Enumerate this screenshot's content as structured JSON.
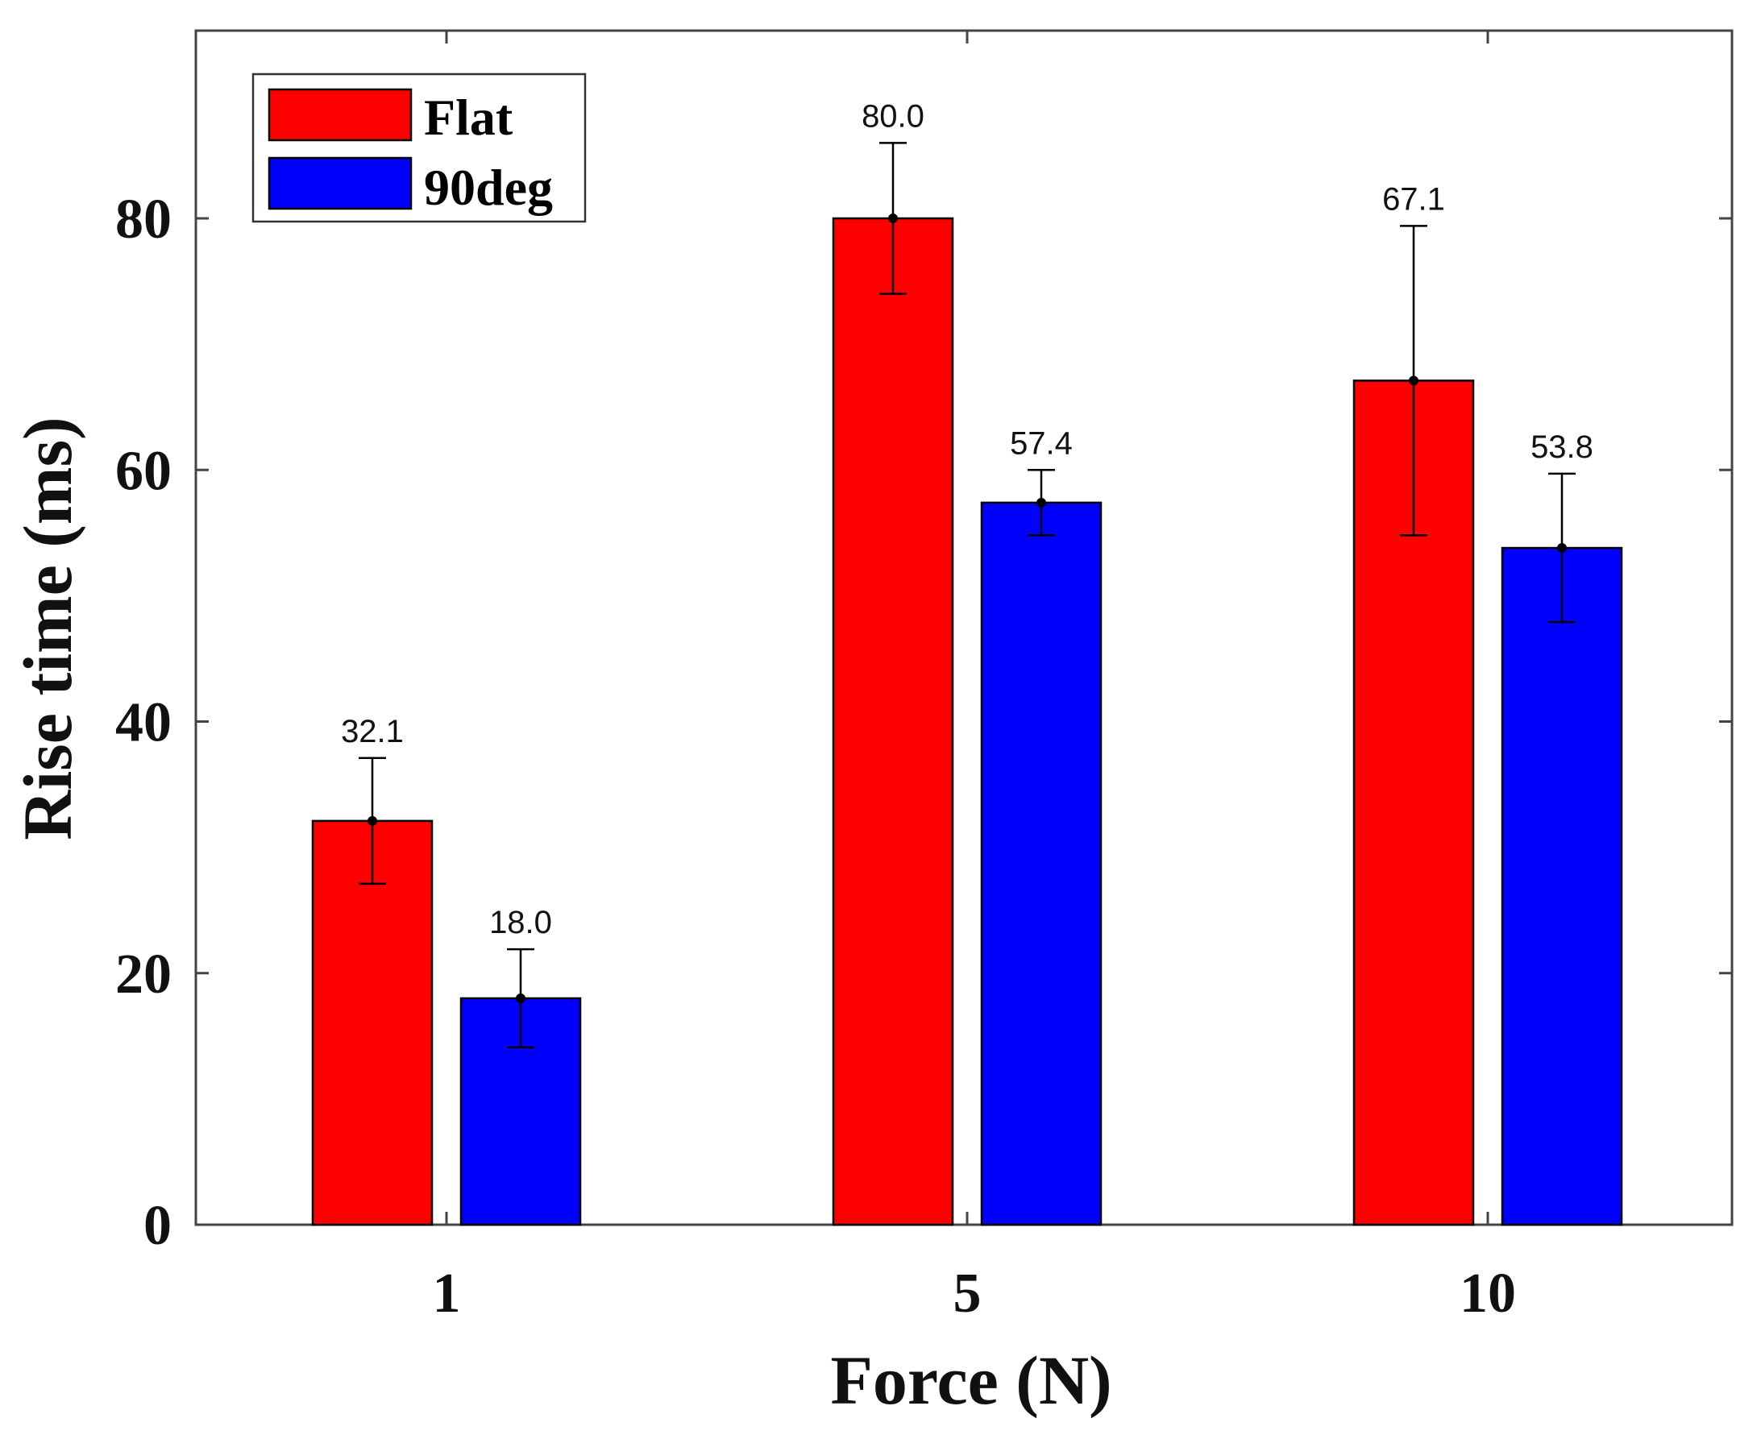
{
  "chart_data": {
    "type": "bar",
    "title": "",
    "xlabel": "Force (N)",
    "ylabel": "Rise time (ms)",
    "categories": [
      "1",
      "5",
      "10"
    ],
    "ylim": [
      0,
      95
    ],
    "yticks": [
      0,
      20,
      40,
      60,
      80
    ],
    "ytick_labels": [
      "0",
      "20",
      "40",
      "60",
      "80"
    ],
    "grid": false,
    "legend_position": "top-left",
    "series": [
      {
        "name": "Flat",
        "color": "#ff0000",
        "values": [
          32.1,
          80.0,
          67.1
        ],
        "errors": [
          5.0,
          6.0,
          12.3
        ],
        "labels": [
          "32.1",
          "80.0",
          "67.1"
        ]
      },
      {
        "name": "90deg",
        "color": "#0000ff",
        "values": [
          18.0,
          57.4,
          53.8
        ],
        "errors": [
          3.9,
          2.6,
          5.9
        ],
        "labels": [
          "18.0",
          "57.4",
          "53.8"
        ]
      }
    ]
  }
}
